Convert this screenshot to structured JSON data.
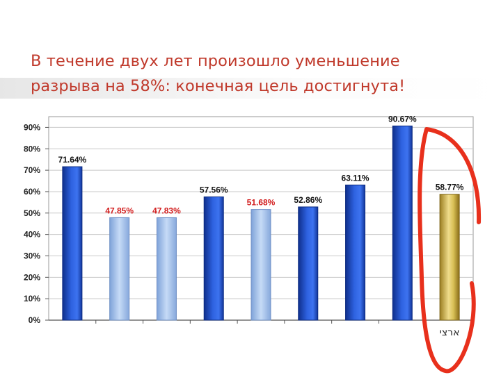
{
  "slide": {
    "title_line1": "В течение двух лет произошло уменьшение",
    "title_line2": "разрыва на 58%: конечная цель достигнута!"
  },
  "colors": {
    "title": "#c0392b",
    "dark_bar": "#1f4fc7",
    "light_bar": "#a9c4ec",
    "gold_bar": "#d4bd5a",
    "red_label": "#d21f1f",
    "highlight_ellipse": "#e8301c"
  },
  "chart_data": {
    "type": "bar",
    "ylim": [
      0,
      90
    ],
    "yticks": [
      "0%",
      "10%",
      "20%",
      "30%",
      "40%",
      "50%",
      "60%",
      "70%",
      "80%",
      "90%"
    ],
    "grid": true,
    "categories": [
      "",
      "",
      "",
      "",
      "",
      "",
      "",
      "",
      "ארצי"
    ],
    "values": [
      71.64,
      47.85,
      47.83,
      57.56,
      51.68,
      52.86,
      63.11,
      90.67,
      58.77
    ],
    "value_labels": [
      "71.64%",
      "47.85%",
      "47.83%",
      "57.56%",
      "51.68%",
      "52.86%",
      "63.11%",
      "90.67%",
      "58.77%"
    ],
    "bar_styles": [
      "dark",
      "light",
      "light",
      "dark",
      "light",
      "dark",
      "dark",
      "dark",
      "gold"
    ],
    "label_colors": [
      "#111111",
      "#d21f1f",
      "#d21f1f",
      "#111111",
      "#d21f1f",
      "#111111",
      "#111111",
      "#111111",
      "#111111"
    ],
    "highlighted_category_index": 8
  }
}
